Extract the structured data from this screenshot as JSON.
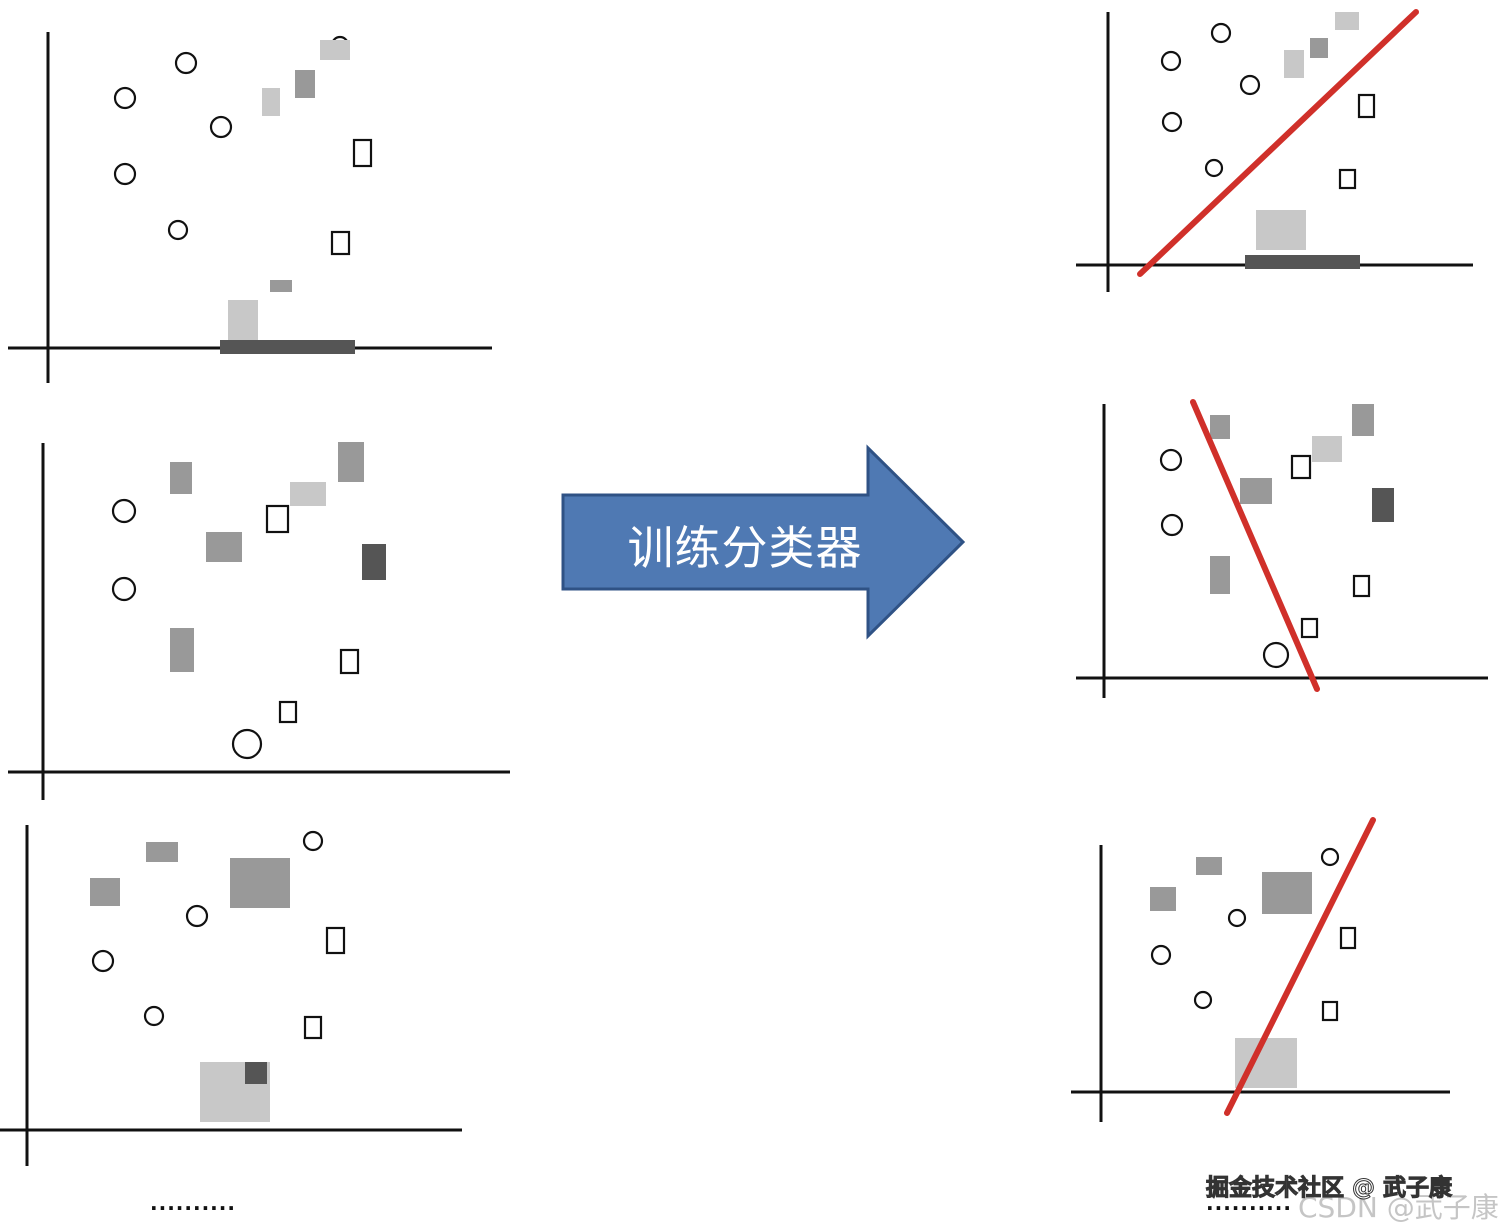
{
  "arrow": {
    "label": "训练分类器",
    "fill": "#4f79b3",
    "stroke": "#2f5285"
  },
  "watermarks": {
    "juejin": "掘金技术社区 @ 武子康",
    "csdn": "CSDN @武子康"
  },
  "ellipsis": {
    "left": "··········",
    "right": "··········"
  },
  "colors": {
    "separator_line": "#d0302a"
  }
}
